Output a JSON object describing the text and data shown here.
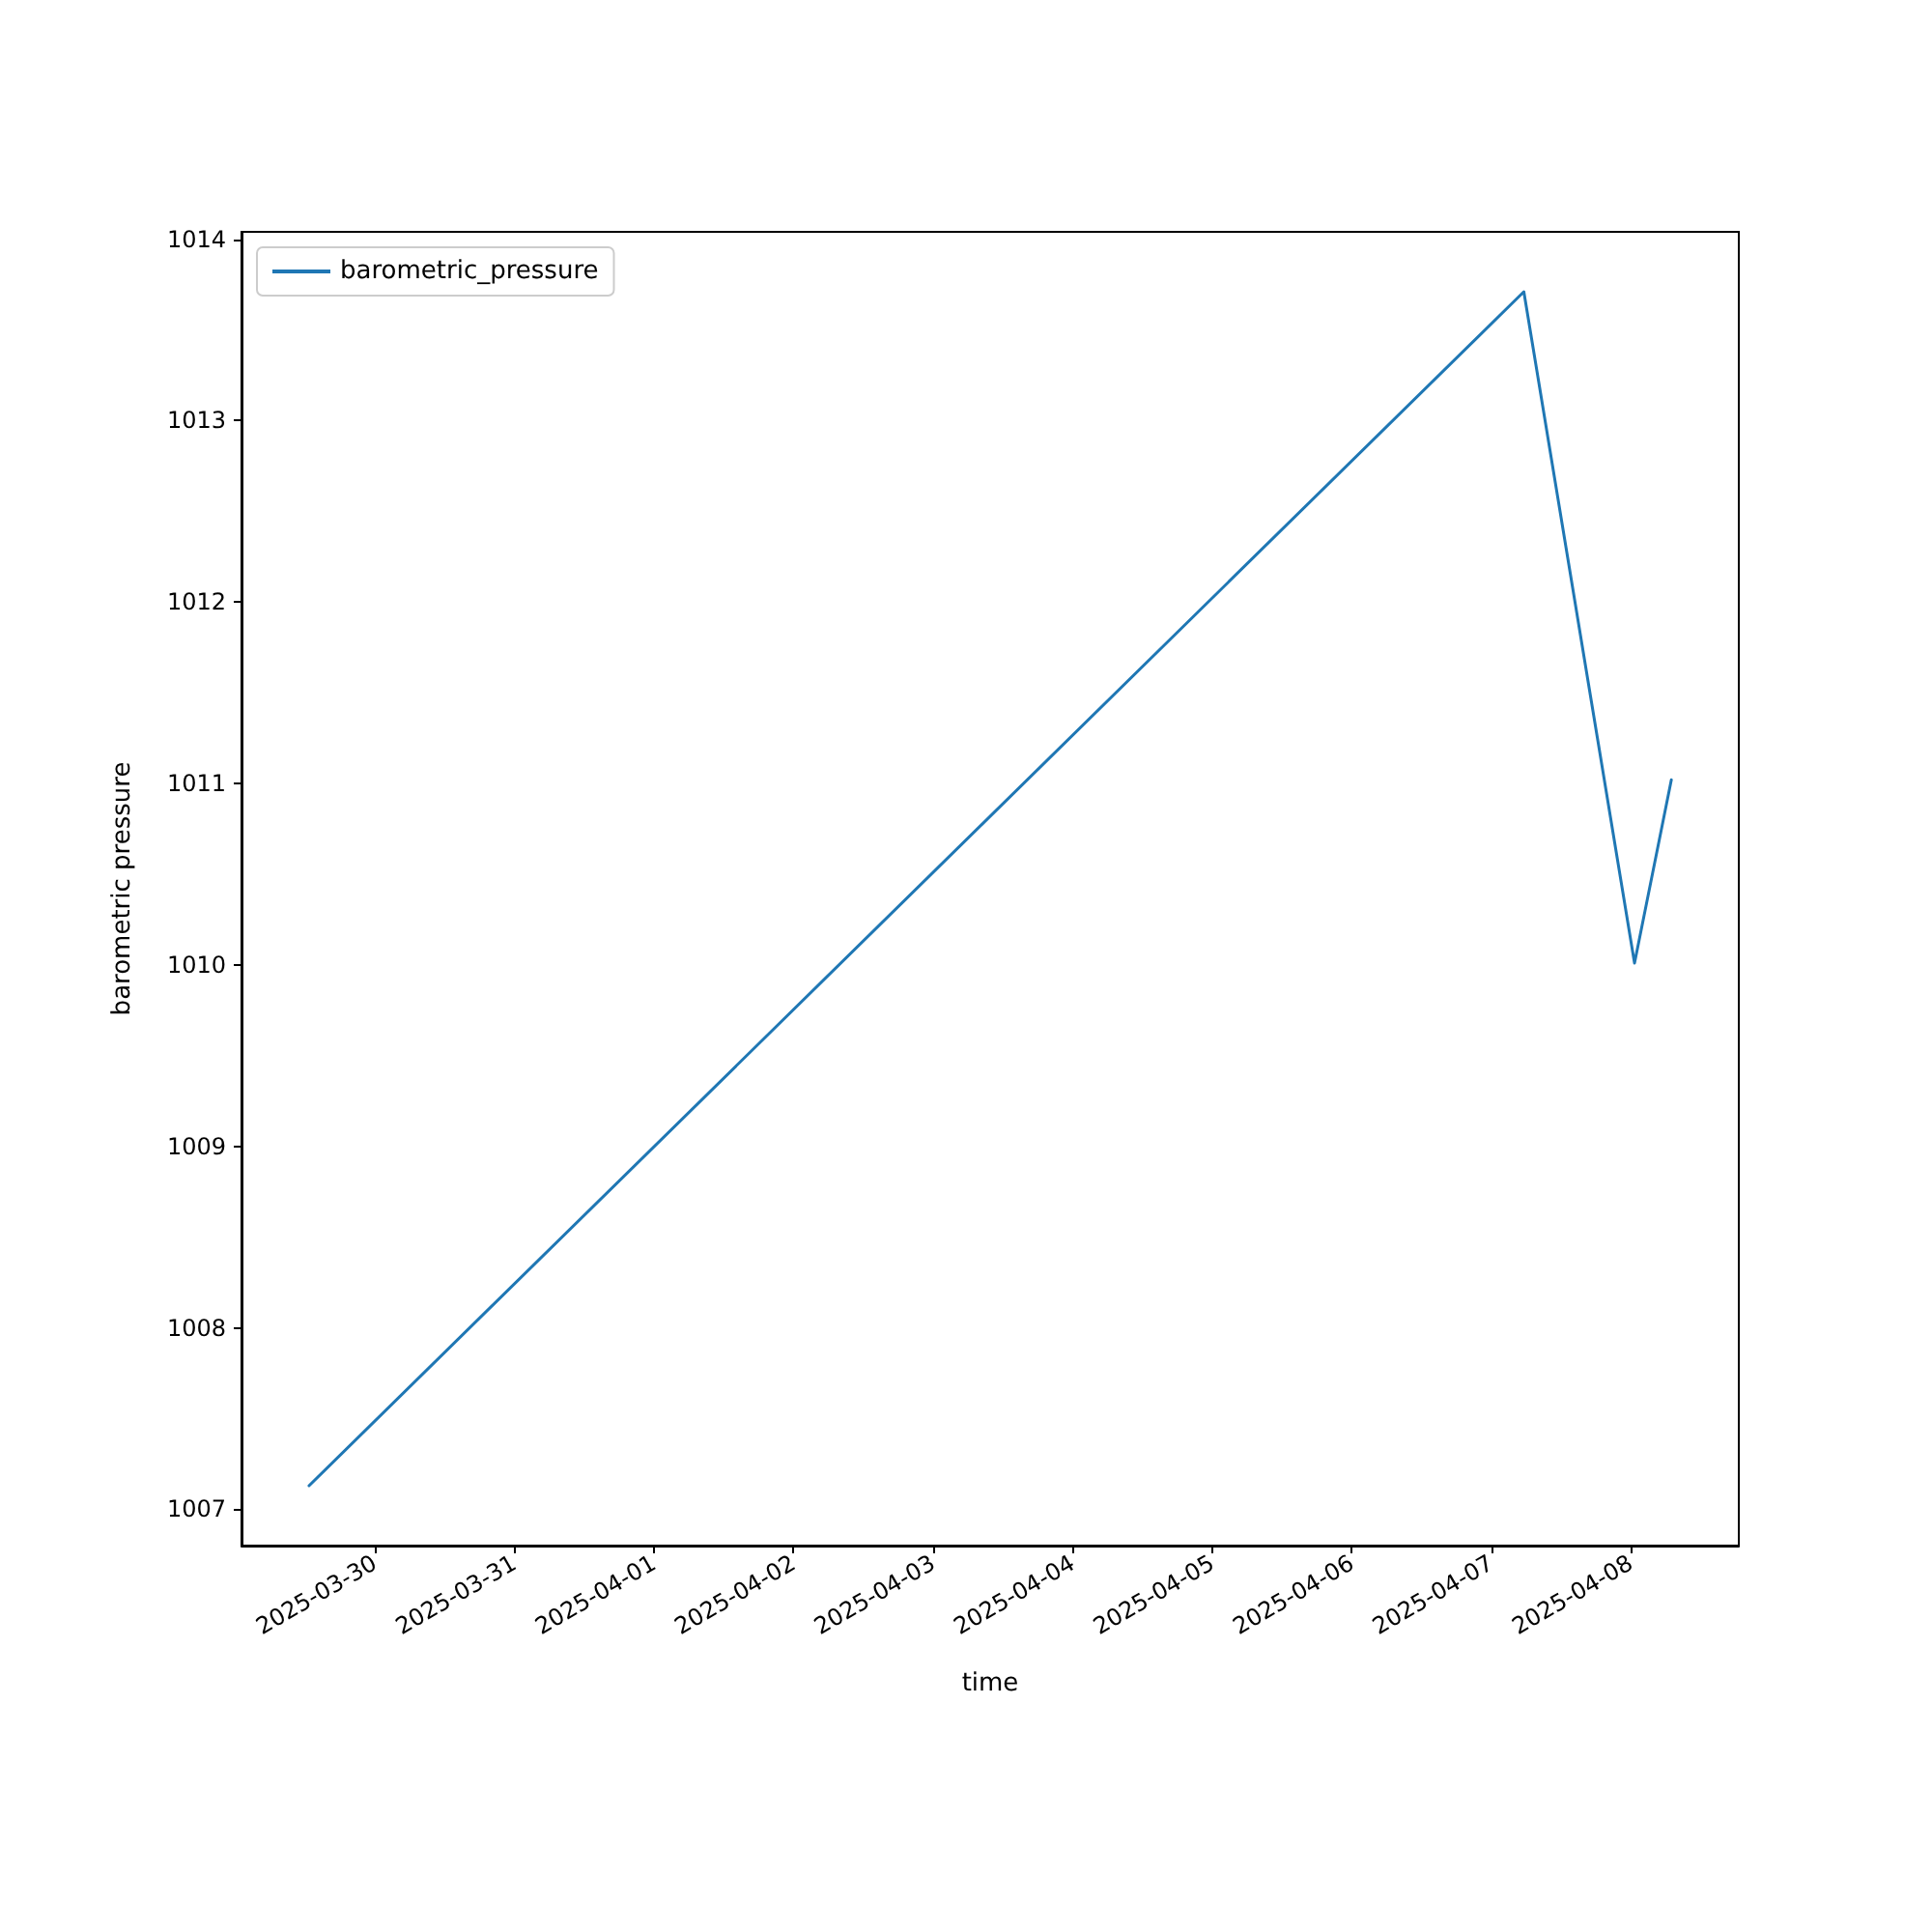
{
  "chart_data": {
    "type": "line",
    "xlabel": "time",
    "ylabel": "barometric pressure",
    "x": [
      "2025-03-29T12:43",
      "2025-04-07T05:38",
      "2025-04-08T00:40",
      "2025-04-08T07:00"
    ],
    "series": [
      {
        "name": "barometric_pressure",
        "color": "#1f77b4",
        "values": [
          1007.13,
          1013.71,
          1010.01,
          1011.02
        ]
      }
    ],
    "xlim": [
      "2025-03-29T01:06",
      "2025-04-08T18:36"
    ],
    "xticks": [
      "2025-03-30",
      "2025-03-31",
      "2025-04-01",
      "2025-04-02",
      "2025-04-03",
      "2025-04-04",
      "2025-04-05",
      "2025-04-06",
      "2025-04-07",
      "2025-04-08"
    ],
    "ylim": [
      1006.8,
      1014.04
    ],
    "yticks": [
      1007,
      1008,
      1009,
      1010,
      1011,
      1012,
      1013,
      1014
    ],
    "grid": false,
    "legend": "top left",
    "marker": "none",
    "line_style": "solid"
  }
}
